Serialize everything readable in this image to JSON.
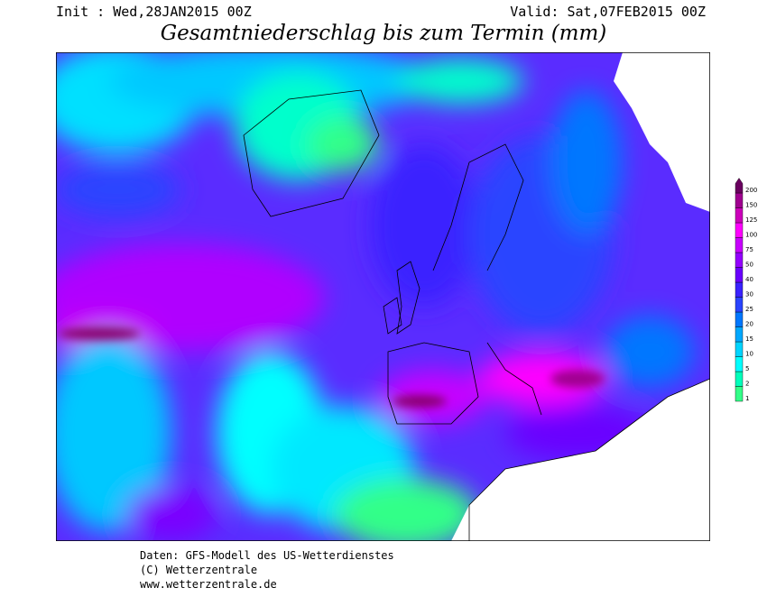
{
  "header": {
    "init": "Init : Wed,28JAN2015 00Z",
    "valid": "Valid: Sat,07FEB2015 00Z",
    "title": "Gesamtniederschlag bis zum Termin (mm)"
  },
  "legend": {
    "levels": [
      1,
      2,
      5,
      10,
      15,
      20,
      25,
      30,
      40,
      50,
      75,
      100,
      125,
      150,
      200
    ],
    "colors": [
      "#33ff88",
      "#00ffbb",
      "#00ffff",
      "#00d4ff",
      "#00a8ff",
      "#0077ff",
      "#2a44ff",
      "#3a22ff",
      "#6a00ff",
      "#9400ff",
      "#c800ff",
      "#ff00ff",
      "#cc00bb",
      "#a00090",
      "#6a0060"
    ]
  },
  "footer": {
    "lines": [
      "Daten: GFS-Modell des US-Wetterdienstes",
      "(C) Wetterzentrale",
      "www.wetterzentrale.de"
    ]
  }
}
